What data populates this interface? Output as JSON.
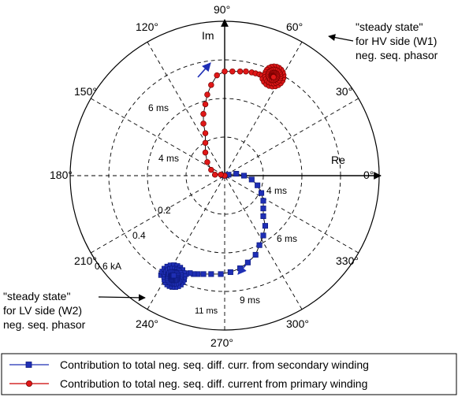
{
  "chart_data": {
    "type": "polar-scatter",
    "angle_labels": [
      "0°",
      "30°",
      "60°",
      "90°",
      "120°",
      "150°",
      "180°",
      "210°",
      "240°",
      "270°",
      "300°",
      "330°"
    ],
    "radial_labels": [
      "0.2",
      "0.4",
      "0.6 kA"
    ],
    "rlim": [
      0,
      0.8
    ],
    "grid": true,
    "axis_labels": {
      "real": "Re",
      "imag": "Im"
    },
    "time_labels": {
      "primary": [
        "4 ms",
        "6 ms"
      ],
      "secondary": [
        "4 ms",
        "6 ms",
        "9 ms",
        "11 ms"
      ]
    },
    "annotations": {
      "hv": [
        "\"steady state\"",
        "for HV side (W1)",
        "neg. seq. phasor"
      ],
      "lv": [
        "\"steady state\"",
        "for LV side (W2)",
        "neg. seq. phasor"
      ]
    },
    "series": [
      {
        "name": "Contribution to total neg. seq. diff. curr. from secondary winding",
        "marker": "square",
        "color": "#1f2fb5",
        "points": [
          [
            0.0,
            0.0
          ],
          [
            0.02,
            0.005
          ],
          [
            0.06,
            0.01
          ],
          [
            0.1,
            0.0
          ],
          [
            0.14,
            -0.02
          ],
          [
            0.17,
            -0.05
          ],
          [
            0.19,
            -0.09
          ],
          [
            0.2,
            -0.13
          ],
          [
            0.2,
            -0.17
          ],
          [
            0.2,
            -0.21
          ],
          [
            0.21,
            -0.26
          ],
          [
            0.2,
            -0.31
          ],
          [
            0.18,
            -0.36
          ],
          [
            0.16,
            -0.41
          ],
          [
            0.12,
            -0.45
          ],
          [
            0.08,
            -0.48
          ],
          [
            0.03,
            -0.5
          ],
          [
            -0.02,
            -0.51
          ],
          [
            -0.07,
            -0.51
          ],
          [
            -0.11,
            -0.51
          ],
          [
            -0.14,
            -0.51
          ],
          [
            -0.16,
            -0.51
          ],
          [
            -0.18,
            -0.505
          ],
          [
            -0.2,
            -0.51
          ]
        ],
        "steady_state": {
          "center": [
            -0.265,
            -0.525
          ],
          "radius": 0.065
        }
      },
      {
        "name": "Contribution to total neg. seq. diff. current from primary winding",
        "marker": "circle",
        "color": "#cc0000",
        "points": [
          [
            0.0,
            0.0
          ],
          [
            -0.02,
            0.005
          ],
          [
            -0.05,
            0.005
          ],
          [
            -0.07,
            0.03
          ],
          [
            -0.09,
            0.07
          ],
          [
            -0.1,
            0.12
          ],
          [
            -0.1,
            0.17
          ],
          [
            -0.1,
            0.22
          ],
          [
            -0.11,
            0.27
          ],
          [
            -0.11,
            0.32
          ],
          [
            -0.1,
            0.37
          ],
          [
            -0.09,
            0.42
          ],
          [
            -0.07,
            0.47
          ],
          [
            -0.04,
            0.52
          ],
          [
            0.0,
            0.54
          ],
          [
            0.04,
            0.54
          ],
          [
            0.08,
            0.54
          ],
          [
            0.11,
            0.54
          ],
          [
            0.14,
            0.535
          ],
          [
            0.16,
            0.53
          ],
          [
            0.18,
            0.525
          ],
          [
            0.2,
            0.52
          ]
        ],
        "steady_state": {
          "center": [
            0.253,
            0.518
          ],
          "radius": 0.06
        }
      }
    ],
    "legend": "bottom"
  }
}
